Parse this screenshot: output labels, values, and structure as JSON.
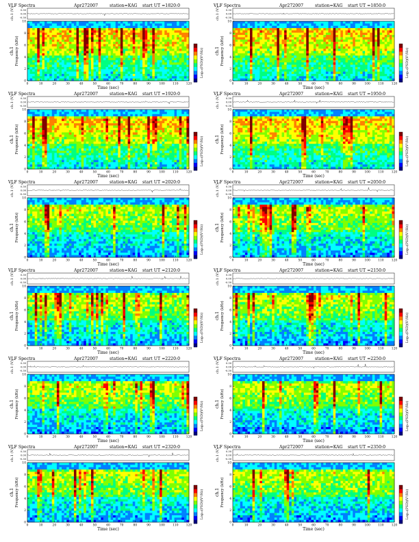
{
  "header_labels": {
    "title": "VLF Spectra",
    "date": "Apr272007",
    "station": "station=KAG",
    "start_prefix": "start  UT  ="
  },
  "axis_labels": {
    "ch_axis": "ch.1 (V)",
    "freq_axis_line1": "ch.1",
    "freq_axis_line2": "Frequency  (kHz)",
    "time_axis": "Time  (sec)",
    "colorbar": "Log₁₀(PSD)(V²/Hz)"
  },
  "colors": {
    "background": "#ffffff",
    "colormap": [
      "#000080",
      "#0000ff",
      "#0080ff",
      "#00ffff",
      "#00ff80",
      "#80ff00",
      "#ffff00",
      "#ff8000",
      "#ff0000",
      "#800000"
    ]
  },
  "chart_data": [
    {
      "type": "heatmap",
      "start_ut": "1820:0",
      "x_ticks": [
        "0",
        "10",
        "20",
        "30",
        "40",
        "50",
        "60",
        "70",
        "80",
        "90",
        "100",
        "110",
        "120"
      ],
      "y_ticks": [
        "0",
        "2",
        "4",
        "6",
        "8",
        "10"
      ],
      "ch_ticks": [
        "0.30",
        "0.00",
        "-0.30"
      ],
      "xlim": [
        0,
        120
      ],
      "ylim": [
        0,
        10
      ]
    },
    {
      "type": "heatmap",
      "start_ut": "1850:0",
      "x_ticks": [
        "0",
        "10",
        "20",
        "30",
        "40",
        "50",
        "60",
        "70",
        "80",
        "90",
        "100",
        "110",
        "120"
      ],
      "y_ticks": [
        "0",
        "2",
        "4",
        "6",
        "8",
        "10"
      ],
      "ch_ticks": [
        "0.30",
        "0.00",
        "-0.30"
      ],
      "xlim": [
        0,
        120
      ],
      "ylim": [
        0,
        10
      ]
    },
    {
      "type": "heatmap",
      "start_ut": "1920:0",
      "x_ticks": [
        "0",
        "10",
        "20",
        "30",
        "40",
        "50",
        "60",
        "70",
        "80",
        "90",
        "100",
        "110",
        "120"
      ],
      "y_ticks": [
        "0",
        "2",
        "4",
        "6",
        "8",
        "10"
      ],
      "ch_ticks": [
        "0.30",
        "0.00",
        "-0.30"
      ],
      "xlim": [
        0,
        120
      ],
      "ylim": [
        0,
        10
      ]
    },
    {
      "type": "heatmap",
      "start_ut": "1950:0",
      "x_ticks": [
        "0",
        "10",
        "20",
        "30",
        "40",
        "50",
        "60",
        "70",
        "80",
        "90",
        "100",
        "110",
        "120"
      ],
      "y_ticks": [
        "0",
        "2",
        "4",
        "6",
        "8",
        "10"
      ],
      "ch_ticks": [
        "0.30",
        "0.00",
        "-0.30"
      ],
      "xlim": [
        0,
        120
      ],
      "ylim": [
        0,
        10
      ]
    },
    {
      "type": "heatmap",
      "start_ut": "2020:0",
      "x_ticks": [
        "0",
        "10",
        "20",
        "30",
        "40",
        "50",
        "60",
        "70",
        "80",
        "90",
        "100",
        "110",
        "120"
      ],
      "y_ticks": [
        "0",
        "2",
        "4",
        "6",
        "8",
        "10"
      ],
      "ch_ticks": [
        "0.30",
        "0.00",
        "-0.30"
      ],
      "xlim": [
        0,
        120
      ],
      "ylim": [
        0,
        10
      ]
    },
    {
      "type": "heatmap",
      "start_ut": "2050:0",
      "x_ticks": [
        "0",
        "10",
        "20",
        "30",
        "40",
        "50",
        "60",
        "70",
        "80",
        "90",
        "100",
        "110",
        "120"
      ],
      "y_ticks": [
        "0",
        "2",
        "4",
        "6",
        "8",
        "10"
      ],
      "ch_ticks": [
        "0.30",
        "0.00",
        "-0.30"
      ],
      "xlim": [
        0,
        120
      ],
      "ylim": [
        0,
        10
      ]
    },
    {
      "type": "heatmap",
      "start_ut": "2120:0",
      "x_ticks": [
        "0",
        "10",
        "20",
        "30",
        "40",
        "50",
        "60",
        "70",
        "80",
        "90",
        "100",
        "110",
        "120"
      ],
      "y_ticks": [
        "0",
        "2",
        "4",
        "6",
        "8",
        "10"
      ],
      "ch_ticks": [
        "0.30",
        "0.00",
        "-0.30"
      ],
      "xlim": [
        0,
        120
      ],
      "ylim": [
        0,
        10
      ]
    },
    {
      "type": "heatmap",
      "start_ut": "2150:0",
      "x_ticks": [
        "0",
        "10",
        "20",
        "30",
        "40",
        "50",
        "60",
        "70",
        "80",
        "90",
        "100",
        "110",
        "120"
      ],
      "y_ticks": [
        "0",
        "2",
        "4",
        "6",
        "8",
        "10"
      ],
      "ch_ticks": [
        "0.30",
        "0.00",
        "-0.30"
      ],
      "xlim": [
        0,
        120
      ],
      "ylim": [
        0,
        10
      ]
    },
    {
      "type": "heatmap",
      "start_ut": "2220:0",
      "x_ticks": [
        "0",
        "10",
        "20",
        "30",
        "40",
        "50",
        "60",
        "70",
        "80",
        "90",
        "100",
        "110",
        "120"
      ],
      "y_ticks": [
        "0",
        "2",
        "4",
        "6",
        "8",
        "10"
      ],
      "ch_ticks": [
        "0.30",
        "0.00",
        "-0.30"
      ],
      "xlim": [
        0,
        120
      ],
      "ylim": [
        0,
        10
      ]
    },
    {
      "type": "heatmap",
      "start_ut": "2250:0",
      "x_ticks": [
        "0",
        "10",
        "20",
        "30",
        "40",
        "50",
        "60",
        "70",
        "80",
        "90",
        "100",
        "110",
        "120"
      ],
      "y_ticks": [
        "0",
        "2",
        "4",
        "6",
        "8",
        "10"
      ],
      "ch_ticks": [
        "0.30",
        "0.00",
        "-0.30"
      ],
      "xlim": [
        0,
        120
      ],
      "ylim": [
        0,
        10
      ]
    },
    {
      "type": "heatmap",
      "start_ut": "2320:0",
      "x_ticks": [
        "0",
        "10",
        "20",
        "30",
        "40",
        "50",
        "60",
        "70",
        "80",
        "90",
        "100",
        "110",
        "120"
      ],
      "y_ticks": [
        "0",
        "2",
        "4",
        "6",
        "8",
        "10"
      ],
      "ch_ticks": [
        "0.30",
        "0.00",
        "-0.30"
      ],
      "xlim": [
        0,
        120
      ],
      "ylim": [
        0,
        10
      ]
    },
    {
      "type": "heatmap",
      "start_ut": "2350:0",
      "x_ticks": [
        "0",
        "10",
        "20",
        "30",
        "40",
        "50",
        "60",
        "70",
        "80",
        "90",
        "100",
        "110",
        "120"
      ],
      "y_ticks": [
        "0",
        "2",
        "4",
        "6",
        "8",
        "10"
      ],
      "ch_ticks": [
        "0.30",
        "0.00",
        "-0.30"
      ],
      "xlim": [
        0,
        120
      ],
      "ylim": [
        0,
        10
      ]
    }
  ]
}
